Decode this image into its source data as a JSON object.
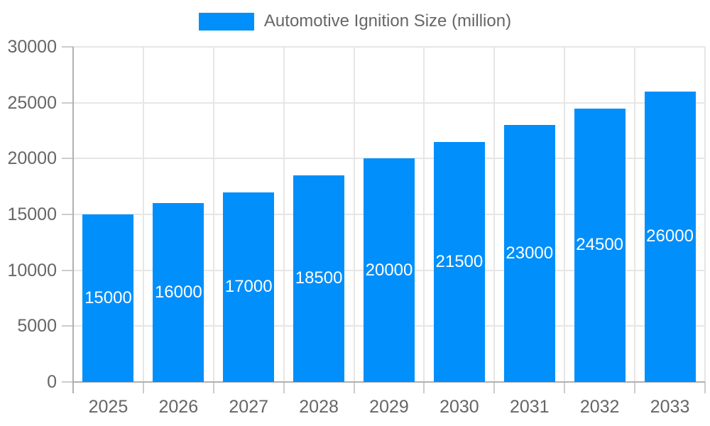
{
  "legend": {
    "label": "Automotive Ignition Size (million)"
  },
  "chart_data": {
    "type": "bar",
    "title": "Automotive Ignition Size (million)",
    "categories": [
      "2025",
      "2026",
      "2027",
      "2028",
      "2029",
      "2030",
      "2031",
      "2032",
      "2033"
    ],
    "values": [
      15000,
      16000,
      17000,
      18500,
      20000,
      21500,
      23000,
      24500,
      26000
    ],
    "series": [
      {
        "name": "Automotive Ignition Size (million)",
        "values": [
          15000,
          16000,
          17000,
          18500,
          20000,
          21500,
          23000,
          24500,
          26000
        ]
      }
    ],
    "xlabel": "",
    "ylabel": "",
    "ylim": [
      0,
      30000
    ],
    "yticks": [
      0,
      5000,
      10000,
      15000,
      20000,
      25000,
      30000
    ],
    "grid": "on",
    "legend_position": "top-center",
    "value_labels": "inside-center-white"
  },
  "colors": {
    "bar": "#008FFB",
    "grid": "#e6e6e6",
    "axis": "#b0b0b0",
    "tick": "#cccccc",
    "text": "#666666",
    "value_label": "#ffffff",
    "background": "#ffffff"
  }
}
